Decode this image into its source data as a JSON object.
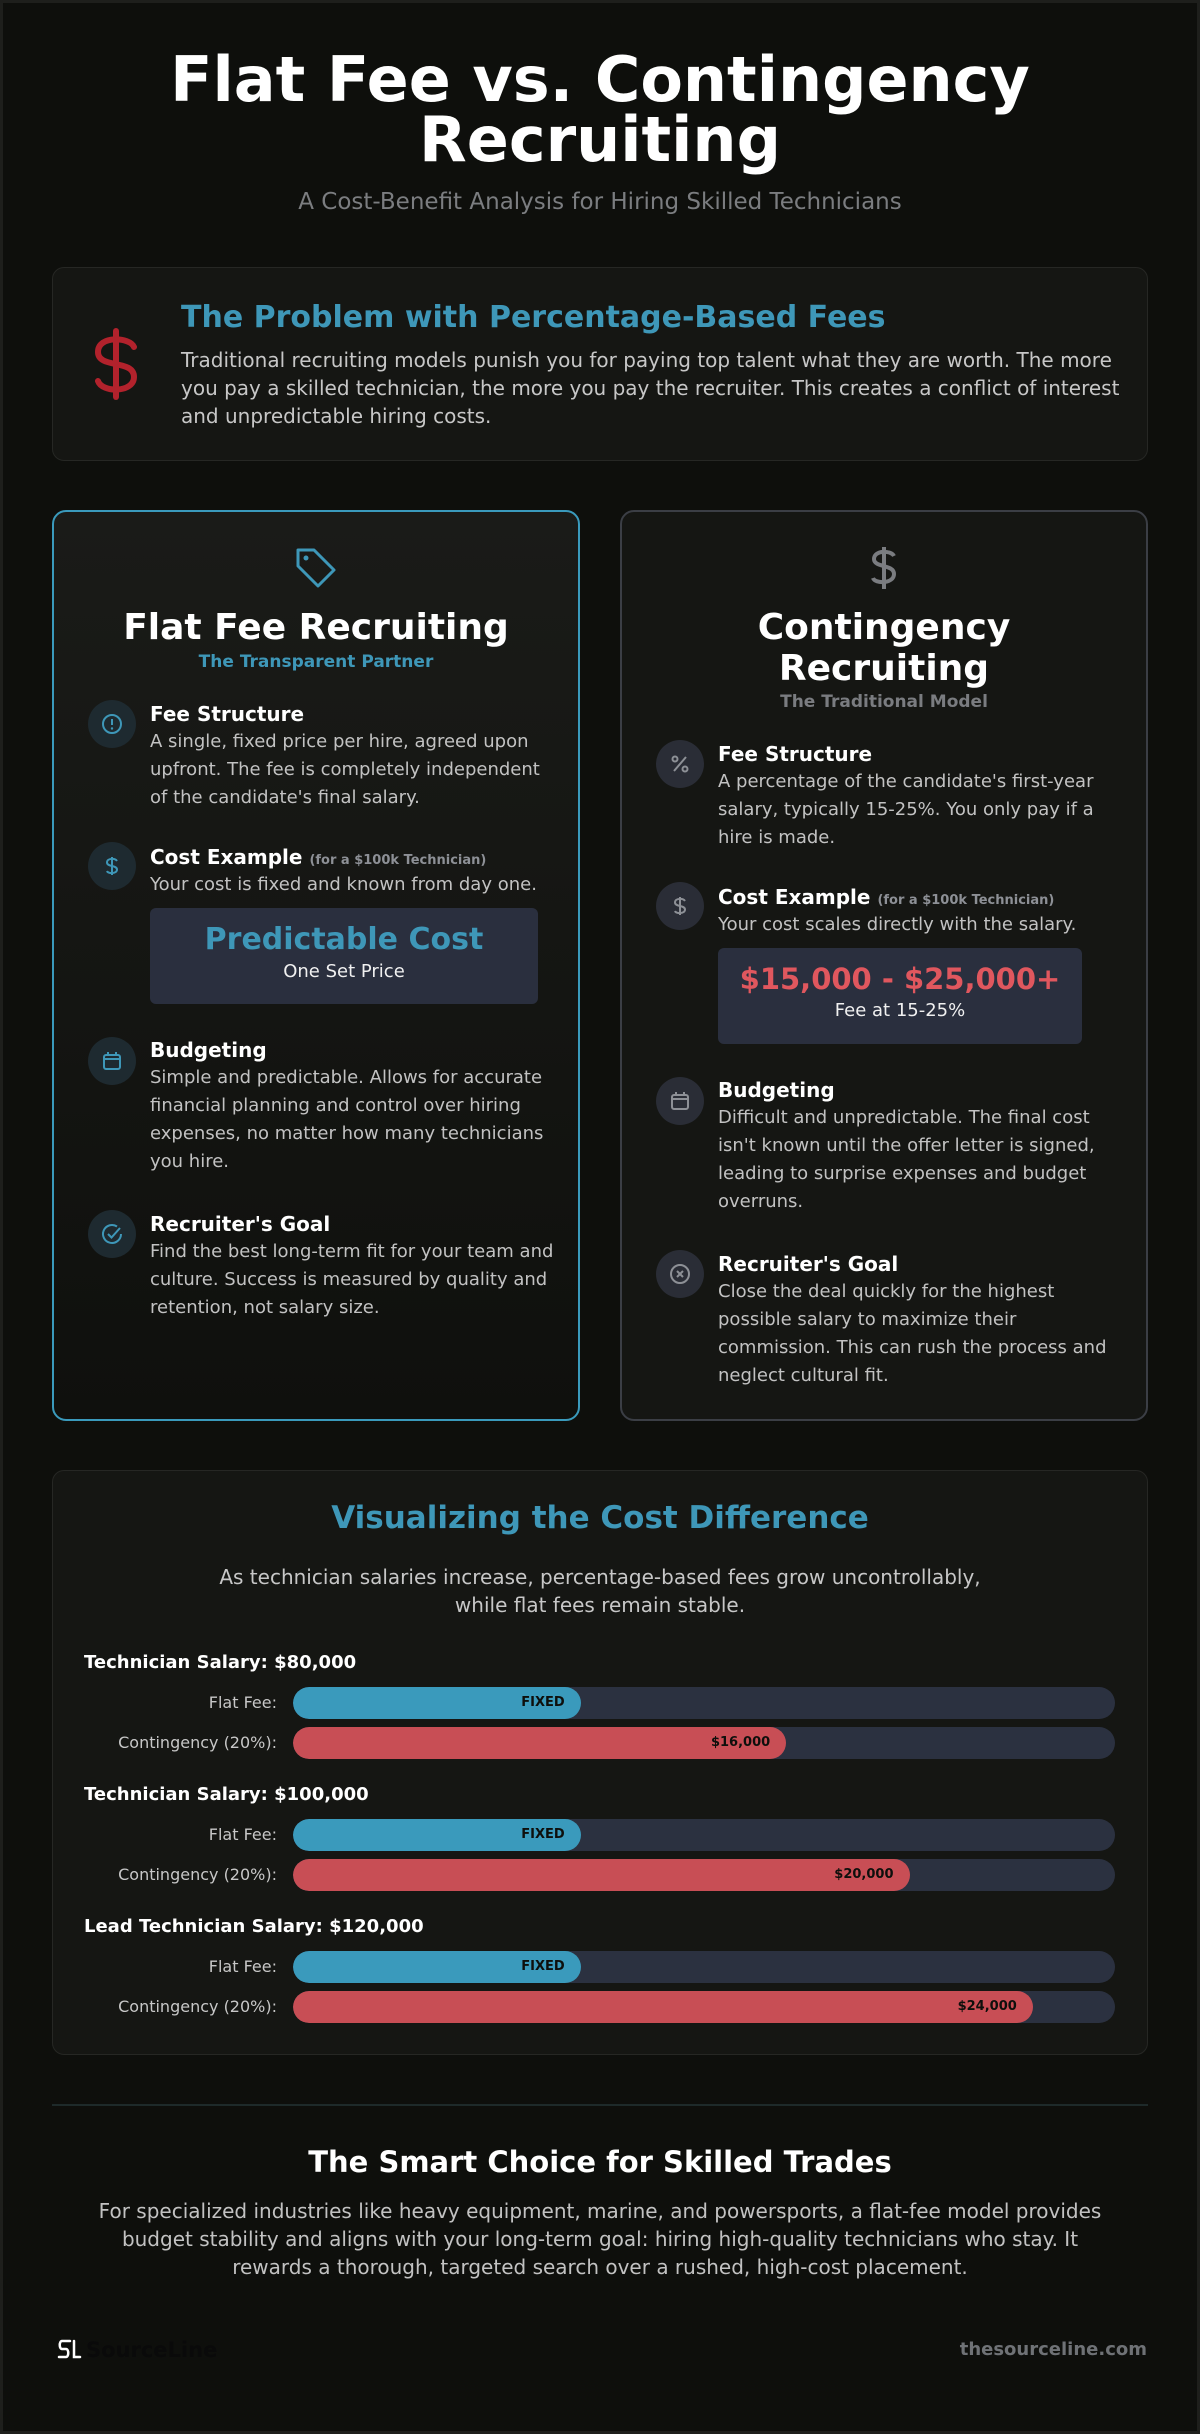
{
  "header": {
    "title_line1": "Flat Fee vs. Contingency",
    "title_line2": "Recruiting",
    "subtitle": "A Cost-Benefit Analysis for Hiring Skilled Technicians"
  },
  "problem": {
    "icon": "dollar-icon",
    "title": "The Problem with Percentage-Based Fees",
    "text": "Traditional recruiting models punish you for paying top talent what they are worth. The more you pay a skilled technician, the more you pay the recruiter. This creates a conflict of interest and unpredictable hiring costs."
  },
  "flat": {
    "icon": "tag-icon",
    "title": "Flat Fee Recruiting",
    "tagline": "The Transparent Partner",
    "fee_title": "Fee Structure",
    "fee_text": "A single, fixed price per hire, agreed upon upfront. The fee is completely independent of the candidate's final salary.",
    "cost_title": "Cost Example",
    "cost_note": "(for a $100k Technician)",
    "cost_text": "Your cost is fixed and known from day one.",
    "price_main": "Predictable Cost",
    "price_sub": "One Set Price",
    "budget_title": "Budgeting",
    "budget_text": "Simple and predictable. Allows for accurate financial planning and control over hiring expenses, no matter how many technicians you hire.",
    "goal_title": "Recruiter's Goal",
    "goal_text": "Find the best long-term fit for your team and culture. Success is measured by quality and retention, not salary size."
  },
  "contingency": {
    "icon": "dollar-icon",
    "title_line1": "Contingency",
    "title_line2": "Recruiting",
    "tagline": "The Traditional Model",
    "fee_title": "Fee Structure",
    "fee_text": "A percentage of the candidate's first-year salary, typically 15-25%. You only pay if a hire is made.",
    "cost_title": "Cost Example",
    "cost_note": "(for a $100k Technician)",
    "cost_text": "Your cost scales directly with the salary.",
    "price_main": "$15,000 - $25,000+",
    "price_sub": "Fee at 15-25%",
    "budget_title": "Budgeting",
    "budget_text": "Difficult and unpredictable. The final cost isn't known until the offer letter is signed, leading to surprise expenses and budget overruns.",
    "goal_title": "Recruiter's Goal",
    "goal_text": "Close the deal quickly for the highest possible salary to maximize their commission. This can rush the process and neglect cultural fit."
  },
  "visual": {
    "title": "Visualizing the Cost Difference",
    "text": "As technician salaries increase, percentage-based fees grow uncontrollably, while flat fees remain stable.",
    "flat_label": "Flat Fee:",
    "cont_label": "Contingency (20%):",
    "groups": [
      {
        "salary_label": "Technician Salary: $80,000",
        "flat_text": "FIXED",
        "flat_fraction": 0.35,
        "cont_text": "$16,000",
        "cont_fraction": 0.6
      },
      {
        "salary_label": "Technician Salary: $100,000",
        "flat_text": "FIXED",
        "flat_fraction": 0.35,
        "cont_text": "$20,000",
        "cont_fraction": 0.75
      },
      {
        "salary_label": "Lead Technician Salary: $120,000",
        "flat_text": "FIXED",
        "flat_fraction": 0.35,
        "cont_text": "$24,000",
        "cont_fraction": 0.9
      }
    ]
  },
  "smart": {
    "title": "The Smart Choice for Skilled Trades",
    "text": "For specialized industries like heavy equipment, marine, and powersports, a flat-fee model provides budget stability and aligns with your long-term goal: hiring high-quality technicians who stay. It rewards a thorough, targeted search over a rushed, high-cost placement."
  },
  "footer": {
    "brand": "SourceLine",
    "site": "thesourceline.com"
  },
  "colors": {
    "accent": "#3e97b8",
    "danger": "#c84e55",
    "background": "#0e0f0c"
  }
}
